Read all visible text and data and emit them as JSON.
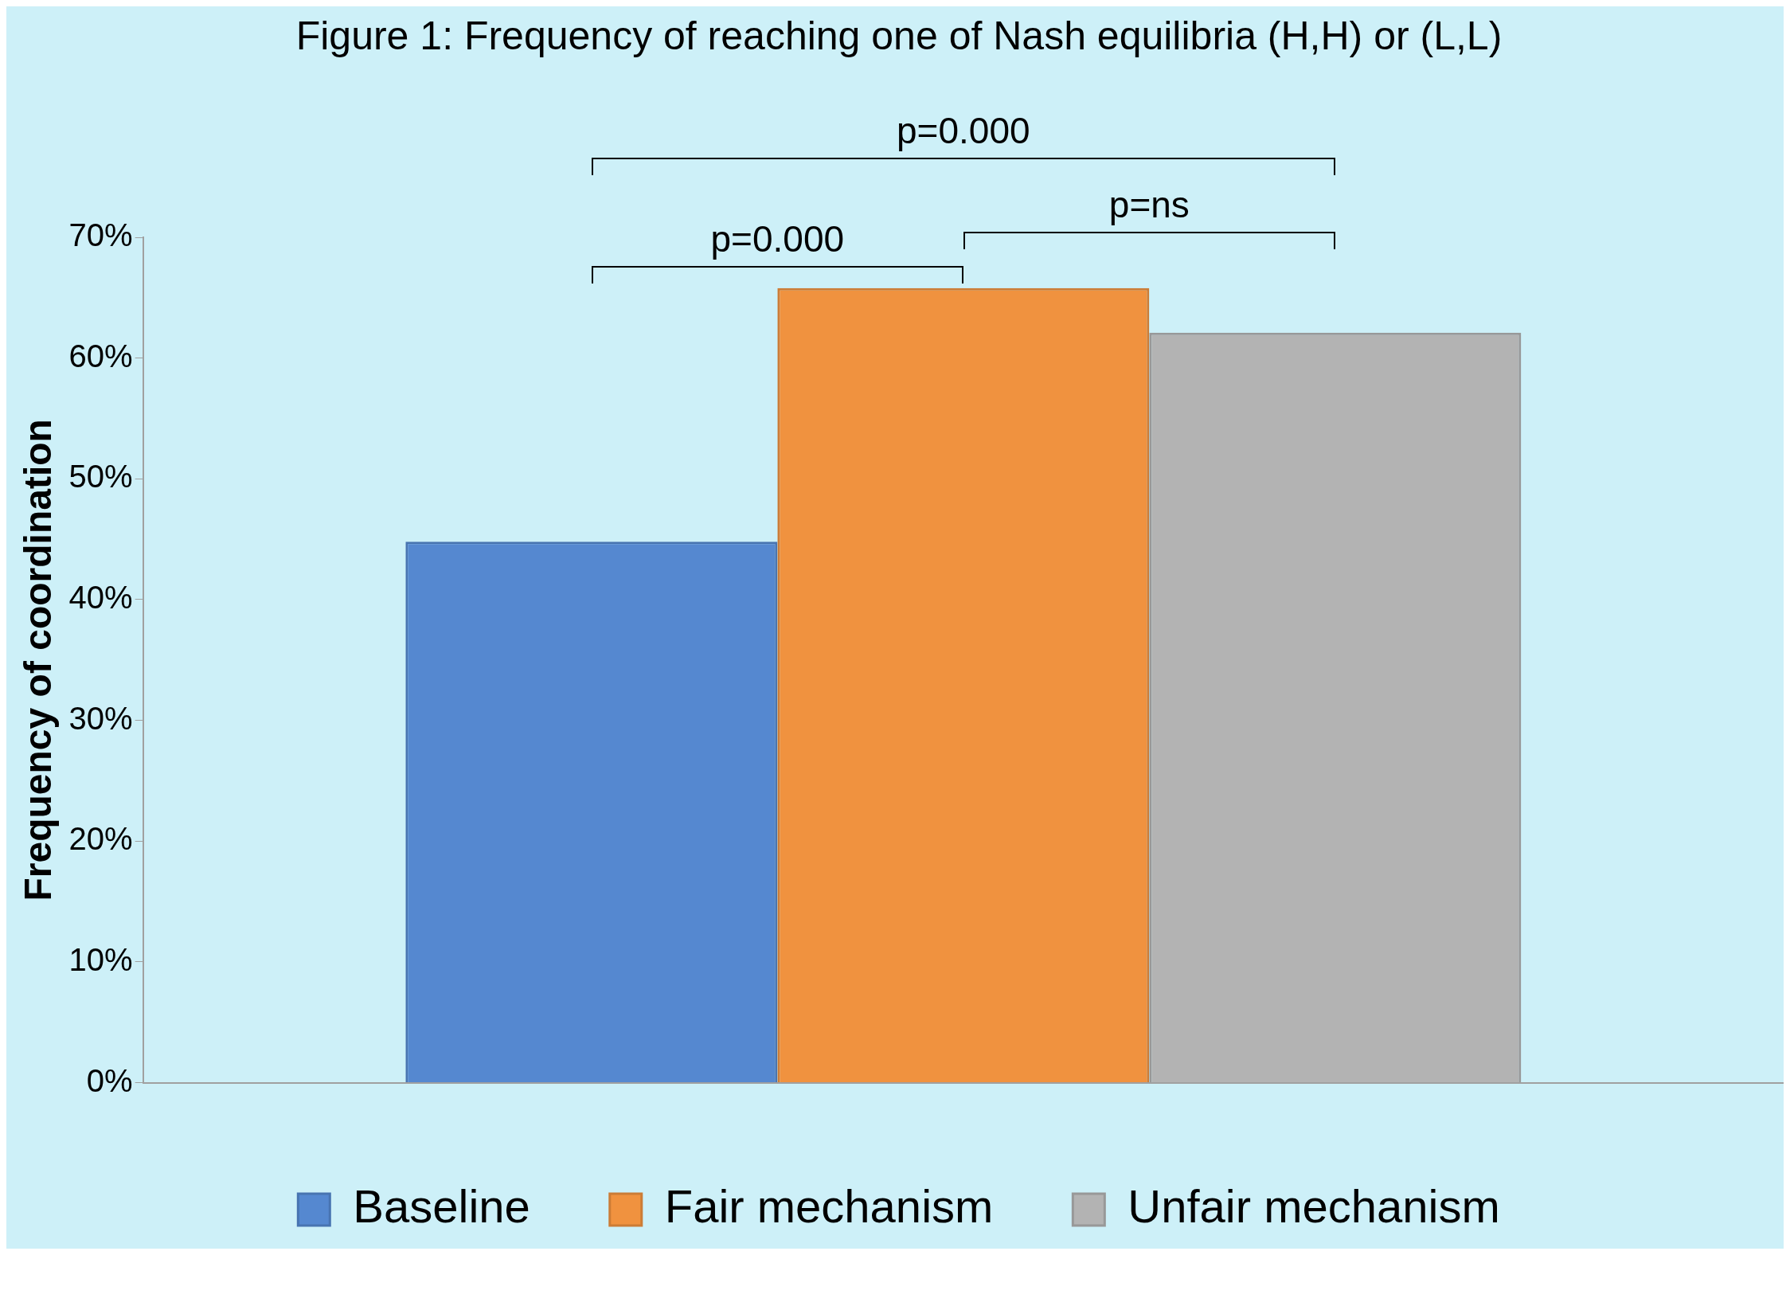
{
  "chart_data": {
    "type": "bar",
    "title": "Figure 1: Frequency of reaching one of Nash equilibria (H,H) or (L,L)",
    "ylabel": "Frequency of coordination",
    "categories": [
      null
    ],
    "series": [
      {
        "name": "Baseline",
        "color": "#5588d0",
        "values": [
          44.8
        ]
      },
      {
        "name": "Fair mechanism",
        "color": "#f0923f",
        "values": [
          65.8
        ]
      },
      {
        "name": "Unfair mechanism",
        "color": "#b3b3b3",
        "values": [
          62.1
        ]
      }
    ],
    "ylim": [
      0,
      70
    ],
    "yticks": [
      {
        "value": 0,
        "label": "0%"
      },
      {
        "value": 10,
        "label": "10%"
      },
      {
        "value": 20,
        "label": "20%"
      },
      {
        "value": 30,
        "label": "30%"
      },
      {
        "value": 40,
        "label": "40%"
      },
      {
        "value": 50,
        "label": "50%"
      },
      {
        "value": 60,
        "label": "60%"
      },
      {
        "value": 70,
        "label": "70%"
      }
    ],
    "grid": false,
    "legend": "bottom",
    "annotations": [
      "p=0.000",
      "p=0.000",
      "p=ns"
    ]
  }
}
